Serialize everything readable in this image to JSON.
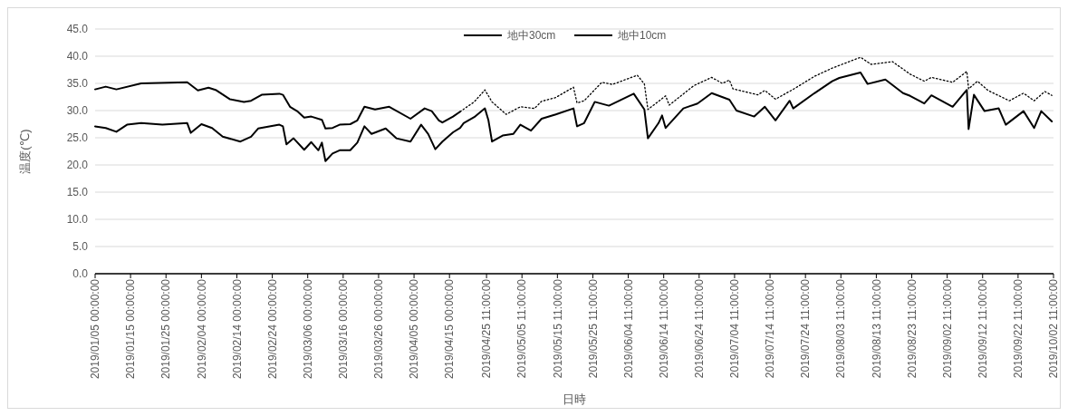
{
  "chart_data": {
    "type": "line",
    "xlabel": "日時",
    "ylabel": "温度(℃)",
    "legend": "top",
    "grid": "y",
    "marker": "none",
    "xlim": [
      "2019-01-05T00:00",
      "2019-10-02T11:00"
    ],
    "xticks": [
      {
        "value": "2019-01-05T00:00",
        "label": "2019/01/05 00:00:00"
      },
      {
        "value": "2019-01-15T00:00",
        "label": "2019/01/15 00:00:00"
      },
      {
        "value": "2019-01-25T00:00",
        "label": "2019/01/25 00:00:00"
      },
      {
        "value": "2019-02-04T00:00",
        "label": "2019/02/04 00:00:00"
      },
      {
        "value": "2019-02-14T00:00",
        "label": "2019/02/14 00:00:00"
      },
      {
        "value": "2019-02-24T00:00",
        "label": "2019/02/24 00:00:00"
      },
      {
        "value": "2019-03-06T00:00",
        "label": "2019/03/06 00:00:00"
      },
      {
        "value": "2019-03-16T00:00",
        "label": "2019/03/16 00:00:00"
      },
      {
        "value": "2019-03-26T00:00",
        "label": "2019/03/26 00:00:00"
      },
      {
        "value": "2019-04-05T00:00",
        "label": "2019/04/05 00:00:00"
      },
      {
        "value": "2019-04-15T00:00",
        "label": "2019/04/15 00:00:00"
      },
      {
        "value": "2019-04-25T11:00",
        "label": "2019/04/25 11:00:00"
      },
      {
        "value": "2019-05-05T11:00",
        "label": "2019/05/05 11:00:00"
      },
      {
        "value": "2019-05-15T11:00",
        "label": "2019/05/15 11:00:00"
      },
      {
        "value": "2019-05-25T11:00",
        "label": "2019/05/25 11:00:00"
      },
      {
        "value": "2019-06-04T11:00",
        "label": "2019/06/04 11:00:00"
      },
      {
        "value": "2019-06-14T11:00",
        "label": "2019/06/14 11:00:00"
      },
      {
        "value": "2019-06-24T11:00",
        "label": "2019/06/24 11:00:00"
      },
      {
        "value": "2019-07-04T11:00",
        "label": "2019/07/04 11:00:00"
      },
      {
        "value": "2019-07-14T11:00",
        "label": "2019/07/14 11:00:00"
      },
      {
        "value": "2019-07-24T11:00",
        "label": "2019/07/24 11:00:00"
      },
      {
        "value": "2019-08-03T11:00",
        "label": "2019/08/03 11:00:00"
      },
      {
        "value": "2019-08-13T11:00",
        "label": "2019/08/13 11:00:00"
      },
      {
        "value": "2019-08-23T11:00",
        "label": "2019/08/23 11:00:00"
      },
      {
        "value": "2019-09-02T11:00",
        "label": "2019/09/02 11:00:00"
      },
      {
        "value": "2019-09-12T11:00",
        "label": "2019/09/12 11:00:00"
      },
      {
        "value": "2019-09-22T11:00",
        "label": "2019/09/22 11:00:00"
      },
      {
        "value": "2019-10-02T11:00",
        "label": "2019/10/02 11:00:00"
      }
    ],
    "ylim": [
      0,
      45
    ],
    "yticks": [
      {
        "value": 0,
        "label": "0.0"
      },
      {
        "value": 5,
        "label": "5.0"
      },
      {
        "value": 10,
        "label": "10.0"
      },
      {
        "value": 15,
        "label": "15.0"
      },
      {
        "value": 20,
        "label": "20.0"
      },
      {
        "value": 25,
        "label": "25.0"
      },
      {
        "value": 30,
        "label": "30.0"
      },
      {
        "value": 35,
        "label": "35.0"
      },
      {
        "value": 40,
        "label": "40.0"
      },
      {
        "value": 45,
        "label": "45.0"
      }
    ],
    "series": [
      {
        "name": "地中30cm",
        "color": "#000000",
        "line_style": "solid",
        "x": [
          "2019-01-05",
          "2019-01-08",
          "2019-01-11",
          "2019-01-18",
          "2019-01-31",
          "2019-02-03",
          "2019-02-06",
          "2019-02-08",
          "2019-02-12",
          "2019-02-16",
          "2019-02-18",
          "2019-02-21",
          "2019-02-26",
          "2019-02-27",
          "2019-03-01",
          "2019-03-03",
          "2019-03-05",
          "2019-03-07",
          "2019-03-10",
          "2019-03-11",
          "2019-03-13",
          "2019-03-15",
          "2019-03-18",
          "2019-03-20",
          "2019-03-22",
          "2019-03-25",
          "2019-03-29",
          "2019-04-04",
          "2019-04-08",
          "2019-04-10",
          "2019-04-12",
          "2019-04-13",
          "2019-04-16",
          "2019-04-18"
        ],
        "values": [
          33.9,
          34.4,
          33.9,
          35.0,
          35.2,
          33.7,
          34.2,
          33.8,
          32.1,
          31.6,
          31.8,
          32.9,
          33.1,
          32.9,
          30.7,
          29.9,
          28.7,
          28.9,
          28.3,
          26.7,
          26.8,
          27.4,
          27.5,
          28.2,
          30.7,
          30.2,
          30.7,
          28.5,
          30.4,
          29.9,
          28.2,
          27.8,
          28.9,
          29.8
        ]
      },
      {
        "name": "地中10cm",
        "color": "#000000",
        "line_style": "solid",
        "x": [
          "2019-01-05",
          "2019-01-08",
          "2019-01-11",
          "2019-01-14",
          "2019-01-18",
          "2019-01-24",
          "2019-01-31",
          "2019-02-01",
          "2019-02-04",
          "2019-02-07",
          "2019-02-10",
          "2019-02-15",
          "2019-02-18",
          "2019-02-20",
          "2019-02-26",
          "2019-02-27",
          "2019-02-28",
          "2019-03-02",
          "2019-03-05",
          "2019-03-07",
          "2019-03-09",
          "2019-03-10",
          "2019-03-11",
          "2019-03-13",
          "2019-03-15",
          "2019-03-18",
          "2019-03-20",
          "2019-03-22",
          "2019-03-24",
          "2019-03-28",
          "2019-03-31",
          "2019-04-04",
          "2019-04-07",
          "2019-04-09",
          "2019-04-11",
          "2019-04-13",
          "2019-04-16",
          "2019-04-18",
          "2019-04-19",
          "2019-04-22",
          "2019-04-25",
          "2019-04-26",
          "2019-04-27",
          "2019-04-30",
          "2019-05-03",
          "2019-05-05",
          "2019-05-08",
          "2019-05-11",
          "2019-05-15",
          "2019-05-20",
          "2019-05-21",
          "2019-05-23",
          "2019-05-26",
          "2019-05-30",
          "2019-06-06",
          "2019-06-09",
          "2019-06-10",
          "2019-06-13",
          "2019-06-14",
          "2019-06-15",
          "2019-06-20",
          "2019-06-24",
          "2019-06-28",
          "2019-07-03",
          "2019-07-05",
          "2019-07-10",
          "2019-07-13",
          "2019-07-16",
          "2019-07-20",
          "2019-07-21",
          "2019-07-27",
          "2019-08-01",
          "2019-08-03",
          "2019-08-09",
          "2019-08-11",
          "2019-08-16",
          "2019-08-21",
          "2019-08-23",
          "2019-08-27",
          "2019-08-29",
          "2019-09-04",
          "2019-09-08",
          "2019-09-08T12:00",
          "2019-09-10",
          "2019-09-13",
          "2019-09-17",
          "2019-09-19",
          "2019-09-24",
          "2019-09-27",
          "2019-09-29",
          "2019-10-02"
        ],
        "values": [
          27.1,
          26.8,
          26.1,
          27.4,
          27.7,
          27.4,
          27.7,
          25.9,
          27.5,
          26.8,
          25.2,
          24.3,
          25.2,
          26.7,
          27.4,
          27.1,
          23.8,
          24.9,
          22.8,
          24.2,
          22.7,
          24.1,
          20.7,
          22.1,
          22.7,
          22.7,
          24.1,
          27.1,
          25.7,
          26.7,
          24.9,
          24.3,
          27.4,
          25.7,
          22.9,
          24.3,
          26.0,
          26.8,
          27.7,
          28.8,
          30.4,
          28.2,
          24.3,
          25.4,
          25.7,
          27.4,
          26.3,
          28.5,
          29.3,
          30.4,
          27.1,
          27.7,
          31.6,
          30.9,
          33.1,
          30.2,
          24.9,
          27.7,
          29.1,
          26.8,
          30.4,
          31.3,
          33.2,
          32.0,
          30.0,
          28.9,
          30.7,
          28.2,
          31.8,
          30.4,
          33.2,
          35.4,
          36.0,
          37.0,
          34.9,
          35.7,
          33.2,
          32.7,
          31.3,
          32.8,
          30.7,
          33.8,
          26.6,
          32.9,
          29.9,
          30.4,
          27.4,
          29.9,
          26.8,
          29.9,
          28.0
        ]
      },
      {
        "color": "#000000",
        "line_style": "dotted",
        "x": [
          "2019-04-18",
          "2019-04-22",
          "2019-04-25",
          "2019-04-27",
          "2019-05-01",
          "2019-05-05",
          "2019-05-09",
          "2019-05-11",
          "2019-05-15",
          "2019-05-20",
          "2019-05-21",
          "2019-05-23",
          "2019-05-28",
          "2019-05-31",
          "2019-06-07",
          "2019-06-09",
          "2019-06-10",
          "2019-06-15",
          "2019-06-16",
          "2019-06-23",
          "2019-06-28",
          "2019-07-01",
          "2019-07-03",
          "2019-07-04",
          "2019-07-11",
          "2019-07-13",
          "2019-07-16",
          "2019-07-21",
          "2019-07-27",
          "2019-08-01",
          "2019-08-09",
          "2019-08-12",
          "2019-08-18",
          "2019-08-23",
          "2019-08-27",
          "2019-08-29",
          "2019-09-04",
          "2019-09-08",
          "2019-09-08T12:00",
          "2019-09-11",
          "2019-09-14",
          "2019-09-20",
          "2019-09-24",
          "2019-09-27",
          "2019-09-30",
          "2019-10-02"
        ],
        "values": [
          29.8,
          31.6,
          33.8,
          31.6,
          29.3,
          30.7,
          30.4,
          31.7,
          32.4,
          34.3,
          31.4,
          31.8,
          35.2,
          34.8,
          36.5,
          34.9,
          30.2,
          32.7,
          31.0,
          34.6,
          36.1,
          35.0,
          35.6,
          34.0,
          32.9,
          33.7,
          32.1,
          33.9,
          36.3,
          37.8,
          39.8,
          38.5,
          39.0,
          36.7,
          35.4,
          36.1,
          35.2,
          37.2,
          34.0,
          35.4,
          33.7,
          31.8,
          33.2,
          31.8,
          33.5,
          32.8
        ]
      }
    ]
  }
}
